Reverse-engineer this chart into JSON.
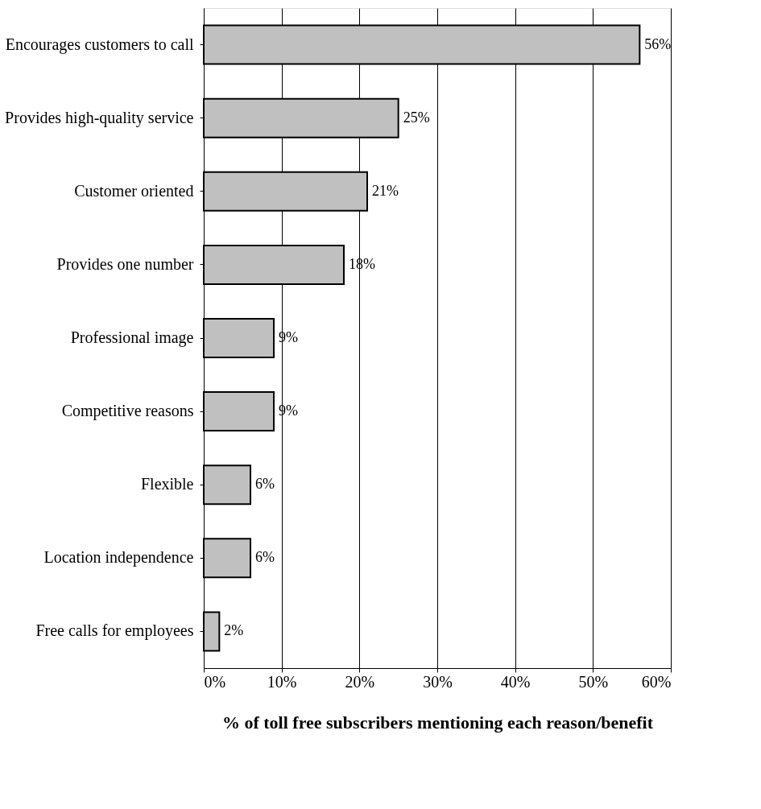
{
  "chart_data": {
    "type": "bar",
    "orientation": "horizontal",
    "categories": [
      "Encourages customers to call",
      "Provides high-quality service",
      "Customer oriented",
      "Provides one number",
      "Professional image",
      "Competitive reasons",
      "Flexible",
      "Location independence",
      "Free calls for employees"
    ],
    "values": [
      56,
      25,
      21,
      18,
      9,
      9,
      6,
      6,
      2
    ],
    "value_labels": [
      "56%",
      "25%",
      "21%",
      "18%",
      "9%",
      "9%",
      "6%",
      "6%",
      "2%"
    ],
    "color": "#c0c0c0",
    "xlim": [
      0,
      60
    ],
    "xticks": [
      {
        "value": 0,
        "label": "0%"
      },
      {
        "value": 10,
        "label": "10%"
      },
      {
        "value": 20,
        "label": "20%"
      },
      {
        "value": 30,
        "label": "30%"
      },
      {
        "value": 40,
        "label": "40%"
      },
      {
        "value": 50,
        "label": "50%"
      },
      {
        "value": 60,
        "label": "60%"
      }
    ],
    "xlabel": "% of toll free subscribers mentioning each reason/benefit",
    "grid": "x"
  }
}
